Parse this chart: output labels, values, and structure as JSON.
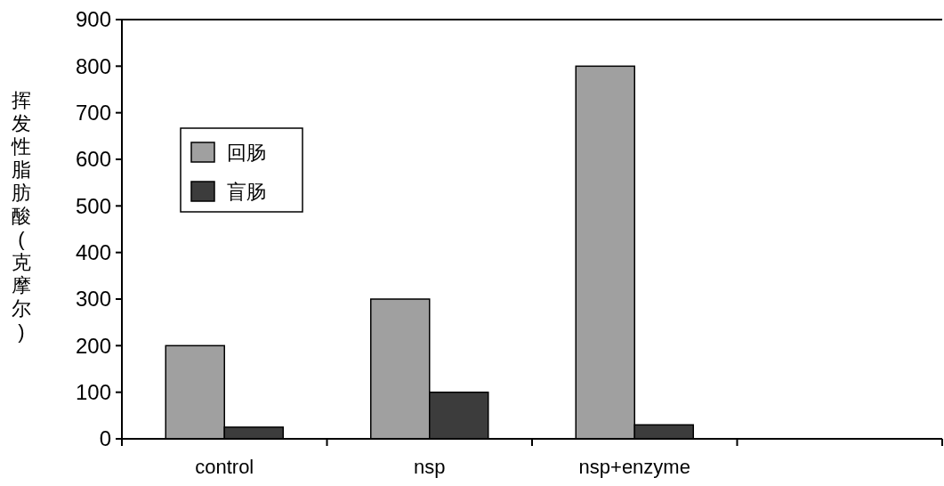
{
  "chart_data": {
    "type": "bar",
    "ylabel": "挥发性脂肪酸(克摩尔)",
    "categories": [
      "control",
      "nsp",
      "nsp+enzyme",
      null
    ],
    "series": [
      {
        "name": "回肠",
        "color": "#a0a0a0",
        "values": [
          200,
          300,
          800,
          null
        ]
      },
      {
        "name": "盲肠",
        "color": "#3c3c3c",
        "values": [
          25,
          100,
          30,
          null
        ]
      }
    ],
    "ylim": [
      0,
      900
    ],
    "yticks": [
      0,
      100,
      200,
      300,
      400,
      500,
      600,
      700,
      800,
      900
    ],
    "grid": false,
    "legend": "top left"
  }
}
